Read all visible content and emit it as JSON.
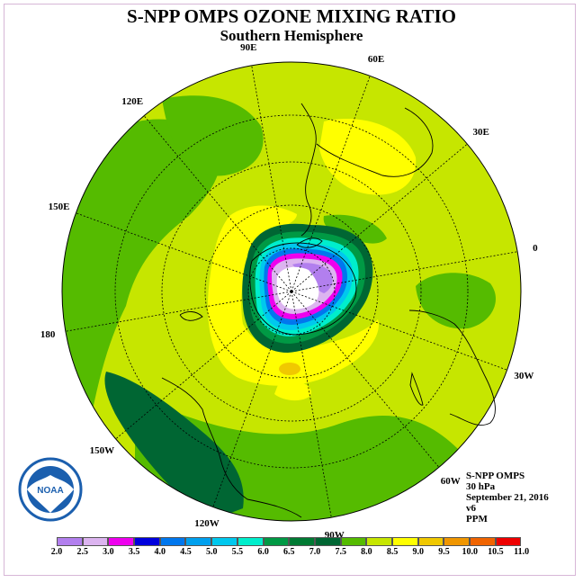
{
  "header": {
    "title": "S-NPP OMPS OZONE MIXING RATIO",
    "subtitle": "Southern Hemisphere"
  },
  "map": {
    "projection": "south-polar-stereographic",
    "longitude_labels": [
      {
        "text": "90W",
        "lon": -90
      },
      {
        "text": "60W",
        "lon": -60
      },
      {
        "text": "30W",
        "lon": -30
      },
      {
        "text": "0",
        "lon": 0
      },
      {
        "text": "30E",
        "lon": 30
      },
      {
        "text": "60E",
        "lon": 60
      },
      {
        "text": "90E",
        "lon": 90
      },
      {
        "text": "120E",
        "lon": 120
      },
      {
        "text": "150E",
        "lon": 150
      },
      {
        "text": "180",
        "lon": 180
      },
      {
        "text": "150W",
        "lon": -150
      },
      {
        "text": "120W",
        "lon": -120
      }
    ],
    "background_color": "#c6e600"
  },
  "info": {
    "instrument": "S-NPP OMPS",
    "level": "30 hPa",
    "date": "September 21, 2016",
    "version": "v6",
    "units": "PPM"
  },
  "colorbar": {
    "ticks": [
      "2.0",
      "2.5",
      "3.0",
      "3.5",
      "4.0",
      "4.5",
      "5.0",
      "5.5",
      "6.0",
      "6.5",
      "7.0",
      "7.5",
      "8.0",
      "8.5",
      "9.0",
      "9.5",
      "10.0",
      "10.5",
      "11.0"
    ],
    "colors": [
      "#b27fee",
      "#dcb4f0",
      "#ee00ee",
      "#0000dd",
      "#0077ee",
      "#00a0ee",
      "#00c8ee",
      "#00eecc",
      "#009944",
      "#007a33",
      "#006633",
      "#55bb00",
      "#c6e600",
      "#ffff00",
      "#f0c800",
      "#f09600",
      "#f06400",
      "#ee0000",
      "#8b4a2e"
    ]
  },
  "logo": {
    "text": "NOAA"
  }
}
